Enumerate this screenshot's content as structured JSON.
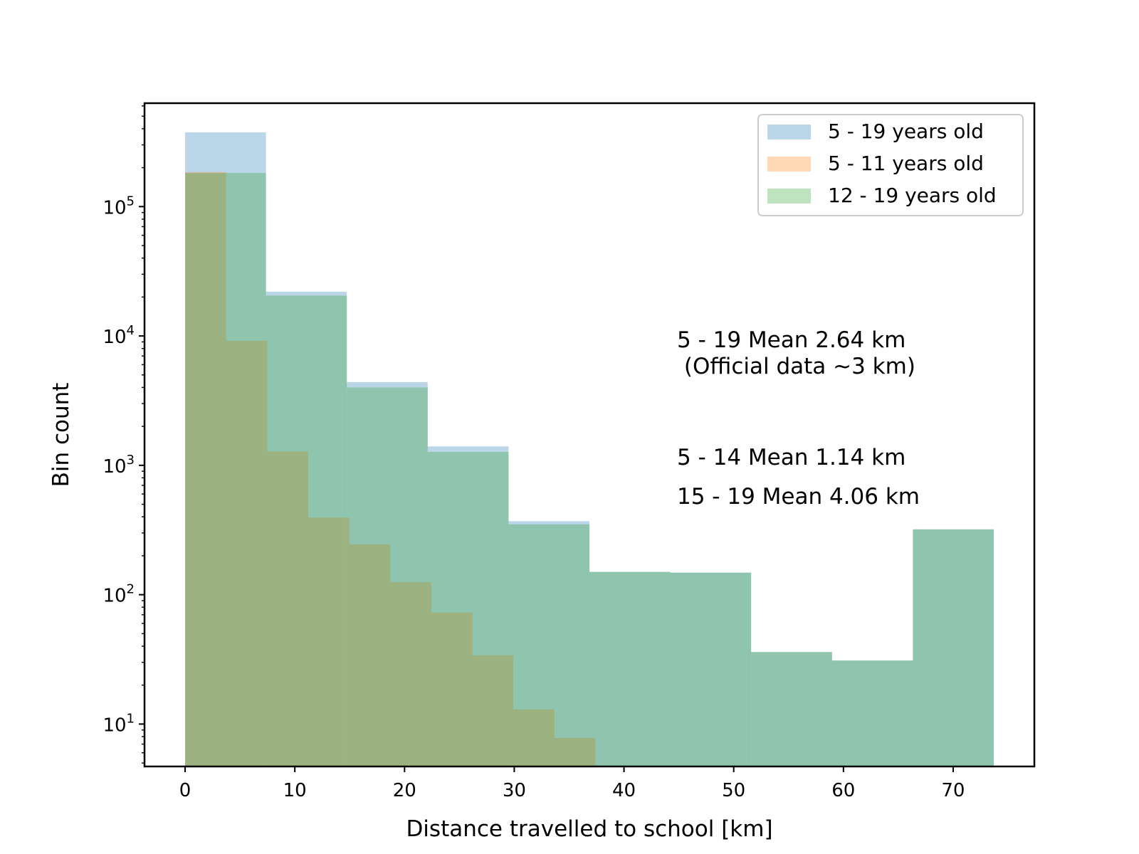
{
  "chart_data": {
    "type": "bar",
    "xlabel": "Distance travelled to school [km]",
    "ylabel": "Bin count",
    "yscale": "log",
    "xlim": [
      -3.7,
      77.4
    ],
    "ylim": [
      4.7,
      630000
    ],
    "x_ticks": [
      0,
      10,
      20,
      30,
      40,
      50,
      60,
      70
    ],
    "y_ticks": [
      {
        "base": "10",
        "exp": "1",
        "value": 10
      },
      {
        "base": "10",
        "exp": "2",
        "value": 100
      },
      {
        "base": "10",
        "exp": "3",
        "value": 1000
      },
      {
        "base": "10",
        "exp": "4",
        "value": 10000
      },
      {
        "base": "10",
        "exp": "5",
        "value": 100000
      }
    ],
    "grid": false,
    "legend_position": "top-right",
    "series": [
      {
        "name": "5 - 19 years old",
        "color": "#1f77b4",
        "alpha": 0.3,
        "bin_edges": [
          0,
          7.37,
          14.74,
          22.11,
          29.48,
          36.85,
          44.22,
          51.59,
          58.96,
          66.33,
          73.7
        ],
        "values": [
          375000,
          22000,
          4400,
          1400,
          370,
          150,
          148,
          36,
          31,
          320
        ]
      },
      {
        "name": "5 - 11 years old",
        "color": "#ff7f0e",
        "alpha": 0.3,
        "bin_edges": [
          0,
          3.74,
          7.48,
          11.22,
          14.96,
          18.7,
          22.44,
          26.18,
          29.92,
          33.66,
          37.4
        ],
        "values": [
          185000,
          9200,
          1280,
          395,
          245,
          125,
          73,
          34,
          13,
          7.8
        ]
      },
      {
        "name": "12 - 19 years old",
        "color": "#2ca02c",
        "alpha": 0.3,
        "bin_edges": [
          0,
          7.37,
          14.74,
          22.11,
          29.48,
          36.85,
          44.22,
          51.59,
          58.96,
          66.33,
          73.7
        ],
        "values": [
          182000,
          20500,
          4000,
          1270,
          350,
          150,
          148,
          36,
          31,
          320
        ]
      }
    ],
    "annotations": [
      "5 - 19 Mean 2.64 km",
      " (Official data ~3 km)",
      "5 - 14 Mean 1.14 km",
      "15 - 19 Mean 4.06 km"
    ]
  }
}
